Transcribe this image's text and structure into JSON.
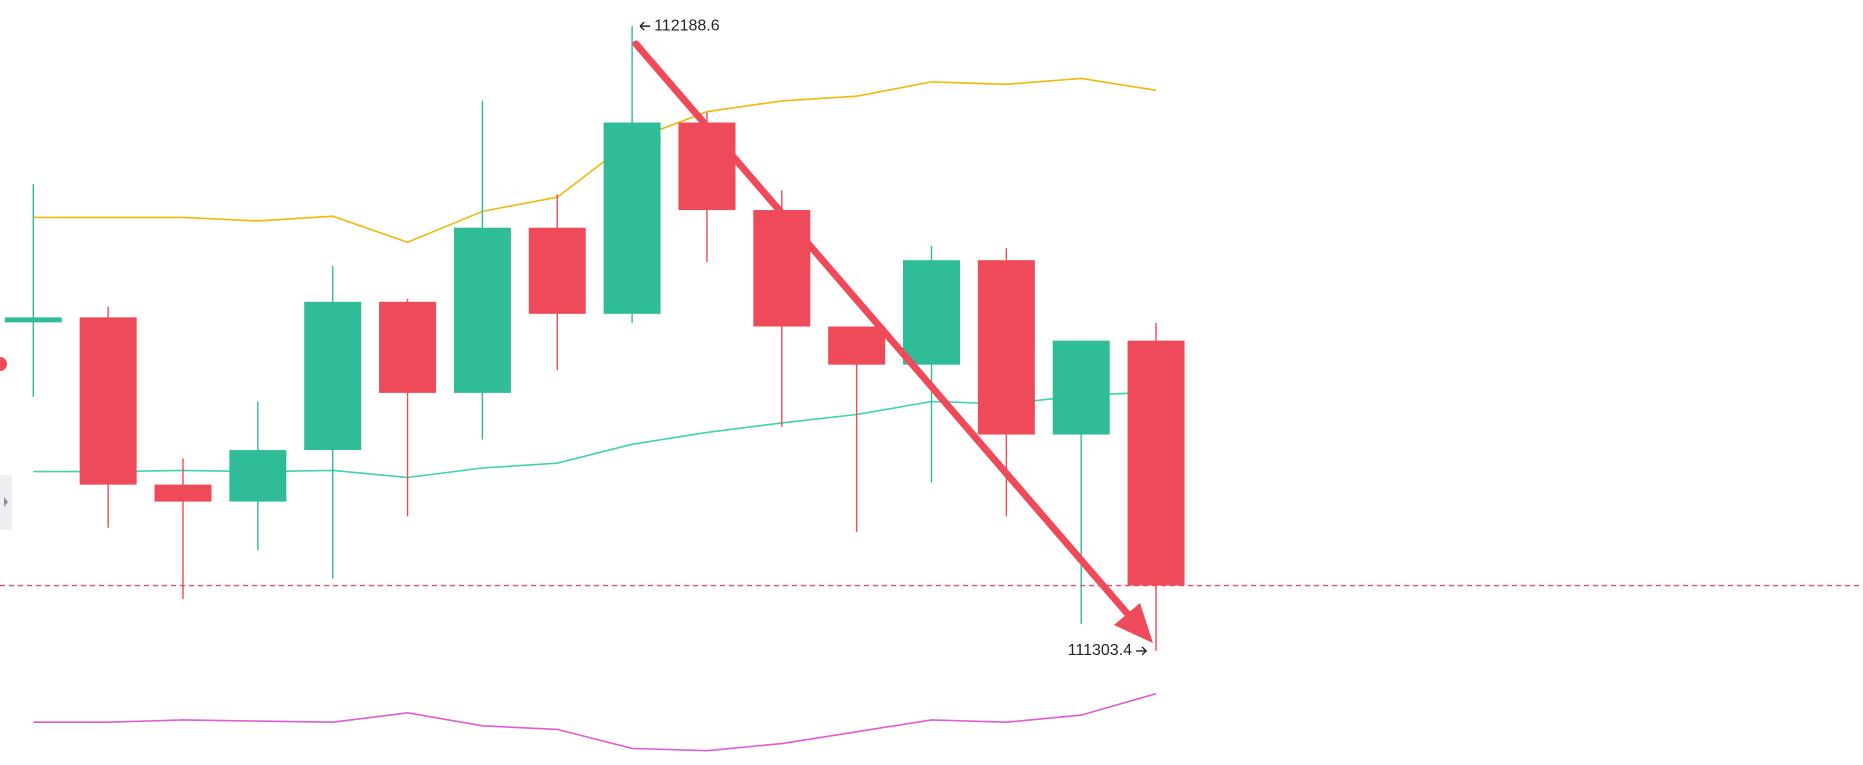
{
  "chart_data": {
    "type": "candlestick",
    "ylim": [
      111141.8,
      112225.6
    ],
    "up_color": "#2ebd96",
    "down_color": "#ef4a5a",
    "candles": [
      {
        "open": 111774,
        "high": 111964.8,
        "low": 111663.5,
        "close": 111776
      },
      {
        "open": 111776,
        "high": 111791,
        "low": 111478,
        "close": 111539
      },
      {
        "open": 111539,
        "high": 111576,
        "low": 111377,
        "close": 111515
      },
      {
        "open": 111515,
        "high": 111657,
        "low": 111446,
        "close": 111588
      },
      {
        "open": 111588,
        "high": 111849,
        "low": 111406,
        "close": 111798
      },
      {
        "open": 111798,
        "high": 111802,
        "low": 111494,
        "close": 111669
      },
      {
        "open": 111669,
        "high": 112083,
        "low": 111603,
        "close": 111903
      },
      {
        "open": 111903,
        "high": 111950,
        "low": 111701,
        "close": 111781
      },
      {
        "open": 111781,
        "high": 112188.6,
        "low": 111768,
        "close": 112052
      },
      {
        "open": 112052,
        "high": 112066,
        "low": 111854,
        "close": 111928
      },
      {
        "open": 111928,
        "high": 111956,
        "low": 111621,
        "close": 111763
      },
      {
        "open": 111763,
        "high": 111763,
        "low": 111472,
        "close": 111709
      },
      {
        "open": 111709,
        "high": 111877,
        "low": 111542,
        "close": 111857
      },
      {
        "open": 111857,
        "high": 111874,
        "low": 111494,
        "close": 111610
      },
      {
        "open": 111610,
        "high": 111743,
        "low": 111342,
        "close": 111743
      },
      {
        "open": 111743,
        "high": 111768,
        "low": 111303.4,
        "close": 111396
      }
    ],
    "series": [
      {
        "color": "#f0b90b",
        "values": [
          111917.6,
          111917.6,
          111917.6,
          111912.6,
          111919.3,
          111882.3,
          111926.1,
          111946.2,
          112027,
          112067.4,
          112082.6,
          112089.3,
          112109.5,
          112106.1,
          112114.5,
          112097.7
        ]
      },
      {
        "color": "#3ed3ad",
        "values": [
          111557.5,
          111557.5,
          111559.2,
          111557.5,
          111559.2,
          111549.1,
          111562.5,
          111569.3,
          111596.2,
          111613,
          111626.5,
          111638.3,
          111656.8,
          111653.4,
          111665.2,
          111670.2
        ]
      },
      {
        "color": "#e35bd2",
        "values": [
          111202.4,
          111202.4,
          111205.7,
          111204,
          111202.4,
          111215.8,
          111197.3,
          111192.3,
          111165.3,
          111162,
          111172.1,
          111188.9,
          111205.7,
          111202.4,
          111212.5,
          111242.8
        ]
      }
    ]
  }
}
